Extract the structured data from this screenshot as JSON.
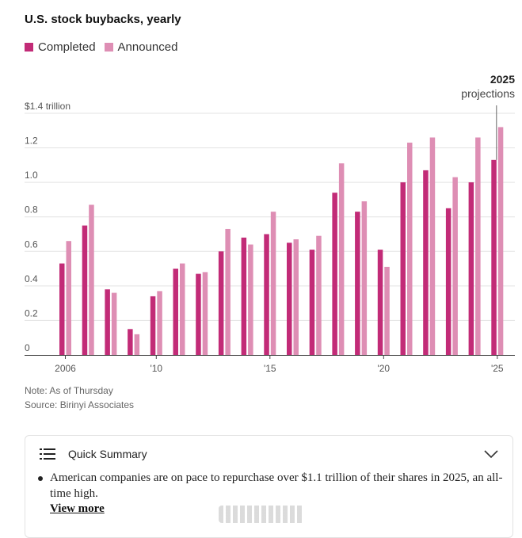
{
  "chart_data": {
    "type": "bar",
    "title": "U.S. stock buybacks, yearly",
    "x": [
      2006,
      2007,
      2008,
      2009,
      2010,
      2011,
      2012,
      2013,
      2014,
      2015,
      2016,
      2017,
      2018,
      2019,
      2020,
      2021,
      2022,
      2023,
      2024,
      2025
    ],
    "series": [
      {
        "name": "Completed",
        "color": "#c22b77",
        "values": [
          0.53,
          0.75,
          0.38,
          0.15,
          0.34,
          0.5,
          0.47,
          0.6,
          0.68,
          0.7,
          0.65,
          0.61,
          0.94,
          0.83,
          0.61,
          1.0,
          1.07,
          0.85,
          1.0,
          1.13
        ]
      },
      {
        "name": "Announced",
        "color": "#de8eb4",
        "values": [
          0.66,
          0.87,
          0.36,
          0.12,
          0.37,
          0.53,
          0.48,
          0.73,
          0.64,
          0.83,
          0.67,
          0.69,
          1.11,
          0.89,
          0.51,
          1.23,
          1.26,
          1.03,
          1.26,
          1.32
        ]
      }
    ],
    "ylim": [
      0,
      1.4
    ],
    "y_ticks": [
      {
        "value": 0,
        "label": "0"
      },
      {
        "value": 0.2,
        "label": "0.2"
      },
      {
        "value": 0.4,
        "label": "0.4"
      },
      {
        "value": 0.6,
        "label": "0.6"
      },
      {
        "value": 0.8,
        "label": "0.8"
      },
      {
        "value": 1.0,
        "label": "1.0"
      },
      {
        "value": 1.2,
        "label": "1.2"
      },
      {
        "value": 1.4,
        "label": "$1.4 trillion"
      }
    ],
    "x_ticks": [
      {
        "value": 2006,
        "label": "2006"
      },
      {
        "value": 2010,
        "label": "'10"
      },
      {
        "value": 2015,
        "label": "'15"
      },
      {
        "value": 2020,
        "label": "'20"
      },
      {
        "value": 2025,
        "label": "'25"
      }
    ],
    "annotation": {
      "year": 2025,
      "line1": "2025",
      "line2": "projections"
    },
    "grid": true,
    "legend_position": "top-left"
  },
  "notes": {
    "note": "Note: As of Thursday",
    "source": "Source: Birinyi Associates"
  },
  "summary": {
    "title": "Quick Summary",
    "bullet": "American companies are on pace to repurchase over $1.1 trillion of their shares in 2025, an all-time high.",
    "view_more": "View more",
    "icon": "list-icon",
    "toggle_icon": "chevron-down-icon"
  }
}
